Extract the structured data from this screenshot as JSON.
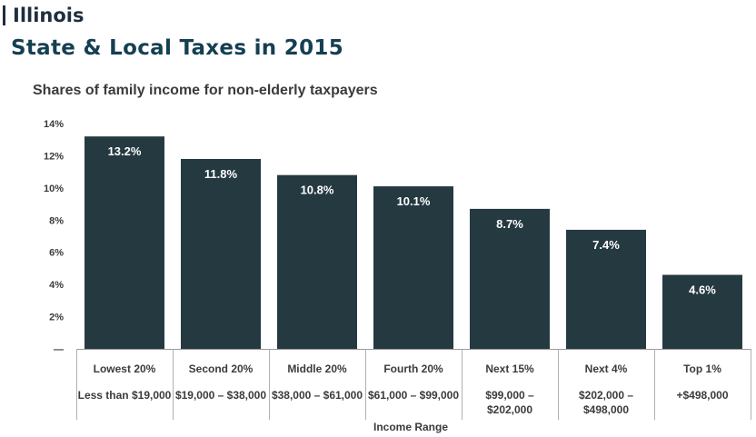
{
  "header": {
    "state_name": "Illinois",
    "accent_color": "#1f2d3d"
  },
  "page_title": "State & Local Taxes in 2015",
  "chart_data": {
    "type": "bar",
    "title": "Shares of family income for non-elderly taxpayers",
    "xlabel": "Income Range",
    "ylabel": "",
    "ylim": [
      0,
      14
    ],
    "yticks": [
      "—",
      "2%",
      "4%",
      "6%",
      "8%",
      "10%",
      "12%",
      "14%"
    ],
    "bar_color": "#253941",
    "categories": [
      "Lowest 20%",
      "Second 20%",
      "Middle 20%",
      "Fourth 20%",
      "Next 15%",
      "Next 4%",
      "Top 1%"
    ],
    "ranges": [
      [
        "Less than $19,000"
      ],
      [
        "$19,000 – $38,000"
      ],
      [
        "$38,000 – $61,000"
      ],
      [
        "$61,000 – $99,000"
      ],
      [
        "$99,000 –",
        "$202,000"
      ],
      [
        "$202,000 –",
        "$498,000"
      ],
      [
        "+$498,000"
      ]
    ],
    "values": [
      13.2,
      11.8,
      10.8,
      10.1,
      8.7,
      7.4,
      4.6
    ],
    "value_labels": [
      "13.2%",
      "11.8%",
      "10.8%",
      "10.1%",
      "8.7%",
      "7.4%",
      "4.6%"
    ],
    "grid": false,
    "legend": "none"
  }
}
